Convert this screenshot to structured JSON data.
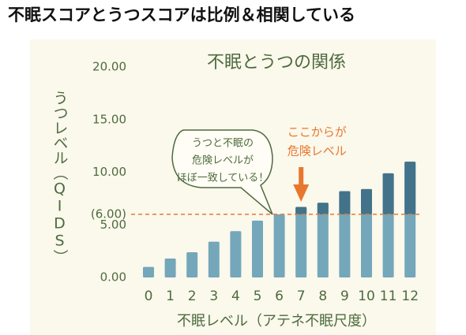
{
  "header": {
    "title": "不眠スコアとうつスコアは比例＆相関している"
  },
  "chart_data": {
    "type": "bar",
    "title": "不眠とうつの関係",
    "y_label": "うつレベル（QIDS）",
    "x_label": "不眠レベル（アテネ不眠尺度）",
    "categories": [
      "0",
      "1",
      "2",
      "3",
      "4",
      "5",
      "6",
      "7",
      "8",
      "9",
      "10",
      "11",
      "12"
    ],
    "values": [
      1.0,
      1.8,
      2.4,
      3.4,
      4.4,
      5.4,
      6.0,
      6.7,
      7.1,
      8.2,
      8.4,
      9.9,
      11.0
    ],
    "color": "#74a7ba",
    "upper_color": "#42738a",
    "ylim": [
      0,
      20
    ],
    "yticks": [
      {
        "value": 0,
        "label": "0.00"
      },
      {
        "value": 5,
        "label": "5.00"
      },
      {
        "value": 10,
        "label": "10.00"
      },
      {
        "value": 15,
        "label": "15.00"
      },
      {
        "value": 20,
        "label": "20.00"
      }
    ],
    "reference_line": {
      "value": 6,
      "label": "(6.00)",
      "color": "#e8772e"
    },
    "bubble_text": [
      "うつと不眠の",
      "危険レベルが",
      "ほぼ一致している！"
    ],
    "arrow_text": [
      "ここからが",
      "危険レベル"
    ],
    "arrow_category": 7
  }
}
